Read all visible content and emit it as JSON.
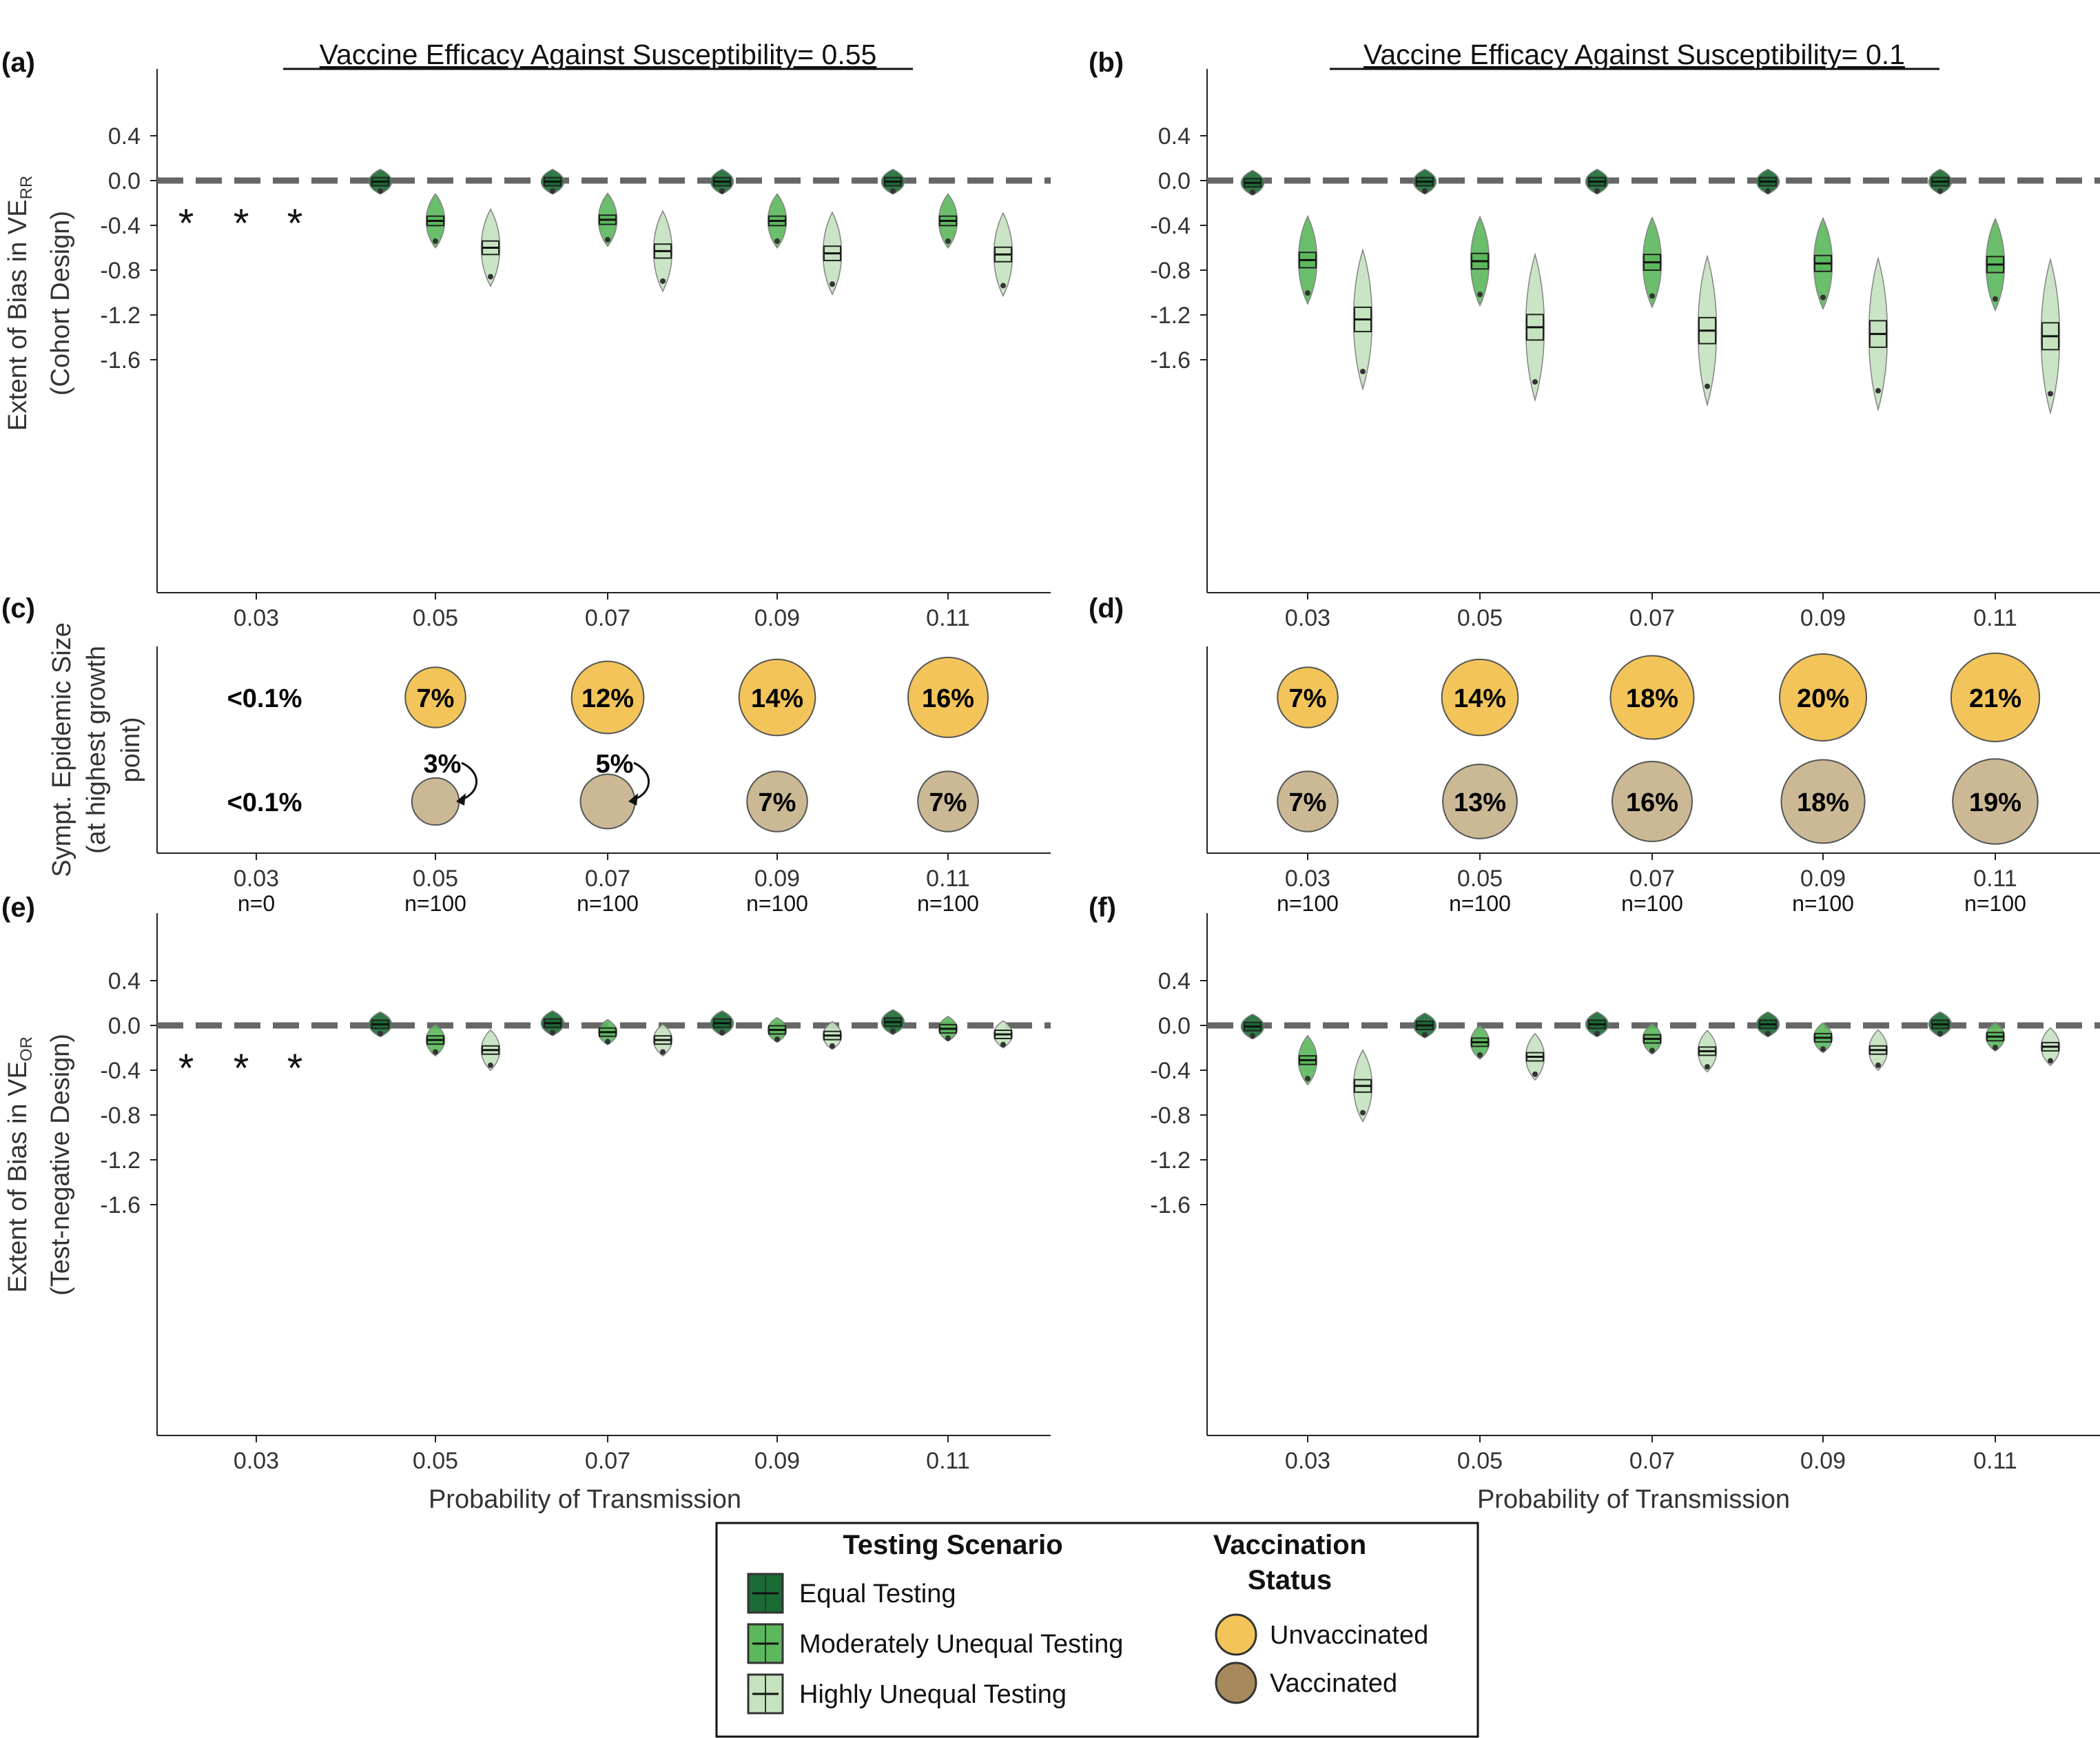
{
  "figure": {
    "panel_labels": [
      "(a)",
      "(b)",
      "(c)",
      "(d)",
      "(e)",
      "(f)"
    ],
    "titles": {
      "left": "Vaccine Efficacy Against Susceptibility= 0.55",
      "right": "Vaccine Efficacy Against Susceptibility= 0.1"
    },
    "ylabel_top": {
      "line1": "Extent of Bias in VE",
      "sub": "RR",
      "line2": "(Cohort Design)"
    },
    "ylabel_mid": {
      "line1": "Sympt. Epidemic Size",
      "line2": "(at highest growth",
      "line3": "point)"
    },
    "ylabel_bottom": {
      "line1": "Extent of Bias in VE",
      "sub": "OR",
      "line2": "(Test-negative Design)"
    },
    "xlabel": "Probability of Transmission",
    "x_tick_labels": [
      "0.03",
      "0.05",
      "0.07",
      "0.09",
      "0.11"
    ],
    "y_tick_labels": [
      "0.4",
      "0.0",
      "-0.4",
      "-0.8",
      "-1.2",
      "-1.6"
    ],
    "n_labels_left": [
      "n=0",
      "n=100",
      "n=100",
      "n=100",
      "n=100"
    ],
    "n_labels_right": [
      "n=100",
      "n=100",
      "n=100",
      "n=100",
      "n=100"
    ],
    "star_symbol": "*"
  },
  "legend": {
    "testing_title": "Testing Scenario",
    "testing_items": [
      {
        "label": "Equal Testing",
        "color": "#1a6b34"
      },
      {
        "label": "Moderately Unequal Testing",
        "color": "#5cb85c"
      },
      {
        "label": "Highly Unequal Testing",
        "color": "#c5e3bf"
      }
    ],
    "vacc_title_line1": "Vaccination",
    "vacc_title_line2": "Status",
    "vacc_items": [
      {
        "label": "Unvaccinated",
        "color": "#f2c45a"
      },
      {
        "label": "Vaccinated",
        "color": "#a68a5b"
      }
    ]
  },
  "chart_data": [
    {
      "type": "box-violin",
      "panel": "(a)",
      "title": "Vaccine Efficacy Against Susceptibility= 0.55",
      "ylabel": "Extent of Bias in VE_RR (Cohort Design)",
      "xlabel": "Probability of Transmission",
      "categories": [
        "0.03",
        "0.05",
        "0.07",
        "0.09",
        "0.11"
      ],
      "ylim": [
        -1.85,
        0.5
      ],
      "reference_line": 0.0,
      "no_data_categories": [
        "0.03"
      ],
      "series": [
        {
          "name": "Equal Testing",
          "medians": [
            null,
            -0.01,
            -0.01,
            -0.01,
            -0.01
          ]
        },
        {
          "name": "Moderately Unequal Testing",
          "medians": [
            null,
            -0.36,
            -0.35,
            -0.36,
            -0.36
          ]
        },
        {
          "name": "Highly Unequal Testing",
          "medians": [
            null,
            -0.6,
            -0.63,
            -0.65,
            -0.66
          ]
        }
      ]
    },
    {
      "type": "box-violin",
      "panel": "(b)",
      "title": "Vaccine Efficacy Against Susceptibility= 0.1",
      "xlabel": "Probability of Transmission",
      "categories": [
        "0.03",
        "0.05",
        "0.07",
        "0.09",
        "0.11"
      ],
      "ylim": [
        -1.85,
        0.5
      ],
      "reference_line": 0.0,
      "series": [
        {
          "name": "Equal Testing",
          "medians": [
            -0.02,
            -0.01,
            -0.01,
            -0.01,
            -0.01
          ]
        },
        {
          "name": "Moderately Unequal Testing",
          "medians": [
            -0.71,
            -0.72,
            -0.73,
            -0.74,
            -0.75
          ]
        },
        {
          "name": "Highly Unequal Testing",
          "medians": [
            -1.24,
            -1.31,
            -1.34,
            -1.37,
            -1.39
          ]
        }
      ]
    },
    {
      "type": "bubble",
      "panel": "(c)",
      "ylabel": "Sympt. Epidemic Size (at highest growth point)",
      "categories": [
        "0.03",
        "0.05",
        "0.07",
        "0.09",
        "0.11"
      ],
      "series": [
        {
          "name": "Unvaccinated",
          "values": [
            0.1,
            7,
            12,
            14,
            16
          ],
          "labels": [
            "<0.1%",
            "7%",
            "12%",
            "14%",
            "16%"
          ]
        },
        {
          "name": "Vaccinated",
          "values": [
            0.1,
            3,
            5,
            7,
            7
          ],
          "labels": [
            "<0.1%",
            "3%",
            "5%",
            "7%",
            "7%"
          ]
        }
      ],
      "n": [
        "n=0",
        "n=100",
        "n=100",
        "n=100",
        "n=100"
      ]
    },
    {
      "type": "bubble",
      "panel": "(d)",
      "categories": [
        "0.03",
        "0.05",
        "0.07",
        "0.09",
        "0.11"
      ],
      "series": [
        {
          "name": "Unvaccinated",
          "values": [
            7,
            14,
            18,
            20,
            21
          ],
          "labels": [
            "7%",
            "14%",
            "18%",
            "20%",
            "21%"
          ]
        },
        {
          "name": "Vaccinated",
          "values": [
            7,
            13,
            16,
            18,
            19
          ],
          "labels": [
            "7%",
            "13%",
            "16%",
            "18%",
            "19%"
          ]
        }
      ],
      "n": [
        "n=100",
        "n=100",
        "n=100",
        "n=100",
        "n=100"
      ]
    },
    {
      "type": "box-violin",
      "panel": "(e)",
      "ylabel": "Extent of Bias in VE_OR (Test-negative Design)",
      "xlabel": "Probability of Transmission",
      "categories": [
        "0.03",
        "0.05",
        "0.07",
        "0.09",
        "0.11"
      ],
      "ylim": [
        -1.85,
        0.5
      ],
      "reference_line": 0.0,
      "no_data_categories": [
        "0.03"
      ],
      "series": [
        {
          "name": "Equal Testing",
          "medians": [
            null,
            0.01,
            0.02,
            0.02,
            0.03
          ]
        },
        {
          "name": "Moderately Unequal Testing",
          "medians": [
            null,
            -0.13,
            -0.06,
            -0.04,
            -0.03
          ]
        },
        {
          "name": "Highly Unequal Testing",
          "medians": [
            null,
            -0.22,
            -0.13,
            -0.09,
            -0.08
          ]
        }
      ]
    },
    {
      "type": "box-violin",
      "panel": "(f)",
      "xlabel": "Probability of Transmission",
      "categories": [
        "0.03",
        "0.05",
        "0.07",
        "0.09",
        "0.11"
      ],
      "ylim": [
        -1.85,
        0.5
      ],
      "reference_line": 0.0,
      "series": [
        {
          "name": "Equal Testing",
          "medians": [
            -0.01,
            0.0,
            0.01,
            0.01,
            0.01
          ]
        },
        {
          "name": "Moderately Unequal Testing",
          "medians": [
            -0.31,
            -0.15,
            -0.12,
            -0.11,
            -0.1
          ]
        },
        {
          "name": "Highly Unequal Testing",
          "medians": [
            -0.54,
            -0.28,
            -0.23,
            -0.22,
            -0.19
          ]
        }
      ]
    }
  ]
}
